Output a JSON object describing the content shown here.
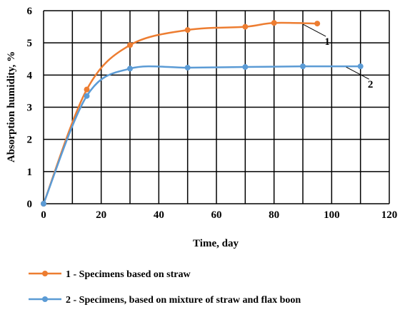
{
  "chart_data": {
    "type": "line",
    "title": "",
    "xlabel": "Time, day",
    "ylabel": "Absorption humidity, %",
    "xlim": [
      0,
      120
    ],
    "ylim": [
      0,
      6
    ],
    "xticks": [
      0,
      20,
      40,
      60,
      80,
      100,
      120
    ],
    "yticks": [
      0,
      1,
      2,
      3,
      4,
      5,
      6
    ],
    "grid": true,
    "smooth": true,
    "legend_position": "bottom",
    "series": [
      {
        "name": "1 - Specimens based on straw",
        "callout": "1",
        "color": "#ED7D31",
        "x": [
          0,
          15,
          30,
          50,
          70,
          80,
          95
        ],
        "y": [
          0,
          3.55,
          4.93,
          5.4,
          5.5,
          5.62,
          5.6
        ]
      },
      {
        "name": "2 - Specimens, based on mixture of straw and flax boon",
        "callout": "2",
        "color": "#5B9BD5",
        "x": [
          0,
          15,
          30,
          50,
          70,
          90,
          110
        ],
        "y": [
          0,
          3.35,
          4.2,
          4.23,
          4.25,
          4.27,
          4.27
        ]
      }
    ]
  }
}
